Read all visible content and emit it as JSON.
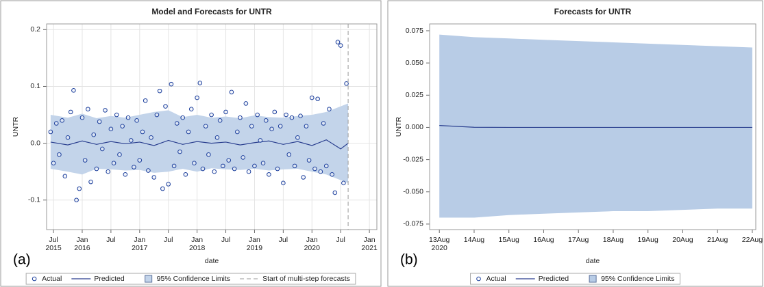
{
  "chart_data": [
    {
      "type": "forecast",
      "title": "Model and Forecasts for UNTR",
      "xlabel": "date",
      "ylabel": "UNTR",
      "panel_label": "(a)",
      "xlim": [
        2015.38,
        2021.13
      ],
      "xticks": [
        {
          "value": 2015.5,
          "label": "Jul 2015"
        },
        {
          "value": 2016.0,
          "label": "Jan 2016"
        },
        {
          "value": 2016.5,
          "label": "Jul"
        },
        {
          "value": 2017.0,
          "label": "Jan 2017"
        },
        {
          "value": 2017.5,
          "label": "Jul"
        },
        {
          "value": 2018.0,
          "label": "Jan 2018"
        },
        {
          "value": 2018.5,
          "label": "Jul"
        },
        {
          "value": 2019.0,
          "label": "Jan 2019"
        },
        {
          "value": 2019.5,
          "label": "Jul"
        },
        {
          "value": 2020.0,
          "label": "Jan 2020"
        },
        {
          "value": 2020.5,
          "label": "Jul"
        },
        {
          "value": 2021.0,
          "label": "Jan 2021"
        }
      ],
      "ylim": [
        -0.152,
        0.21
      ],
      "yticks": [
        0.2,
        0.1,
        {
          "value": 0,
          "label": "0.0"
        },
        -0.1
      ],
      "grid": true,
      "series": [
        {
          "name": "Actual",
          "style": "marker",
          "color": "#1c3f9c",
          "x": [
            2015.45,
            2015.5,
            2015.55,
            2015.6,
            2015.65,
            2015.7,
            2015.75,
            2015.8,
            2015.85,
            2015.9,
            2015.95,
            2016.0,
            2016.05,
            2016.1,
            2016.15,
            2016.2,
            2016.25,
            2016.3,
            2016.35,
            2016.4,
            2016.45,
            2016.5,
            2016.55,
            2016.6,
            2016.65,
            2016.7,
            2016.75,
            2016.8,
            2016.85,
            2016.9,
            2016.95,
            2017.0,
            2017.05,
            2017.1,
            2017.15,
            2017.2,
            2017.25,
            2017.3,
            2017.35,
            2017.4,
            2017.45,
            2017.5,
            2017.55,
            2017.6,
            2017.65,
            2017.7,
            2017.75,
            2017.8,
            2017.85,
            2017.9,
            2017.95,
            2018.0,
            2018.05,
            2018.1,
            2018.15,
            2018.2,
            2018.25,
            2018.3,
            2018.35,
            2018.4,
            2018.45,
            2018.5,
            2018.55,
            2018.6,
            2018.65,
            2018.7,
            2018.75,
            2018.8,
            2018.85,
            2018.9,
            2018.95,
            2019.0,
            2019.05,
            2019.1,
            2019.15,
            2019.2,
            2019.25,
            2019.3,
            2019.35,
            2019.4,
            2019.45,
            2019.5,
            2019.55,
            2019.6,
            2019.65,
            2019.7,
            2019.75,
            2019.8,
            2019.85,
            2019.9,
            2019.95,
            2020.0,
            2020.05,
            2020.1,
            2020.15,
            2020.2,
            2020.25,
            2020.3,
            2020.35,
            2020.4,
            2020.45,
            2020.5,
            2020.55,
            2020.6
          ],
          "values": [
            0.02,
            -0.035,
            0.035,
            -0.02,
            0.04,
            -0.058,
            0.01,
            0.055,
            0.093,
            -0.1,
            -0.08,
            0.045,
            -0.03,
            0.06,
            -0.068,
            0.015,
            -0.045,
            0.038,
            -0.01,
            0.058,
            -0.05,
            0.025,
            -0.035,
            0.05,
            -0.02,
            0.03,
            -0.055,
            0.045,
            0.005,
            -0.042,
            0.04,
            -0.03,
            0.02,
            0.075,
            -0.048,
            0.01,
            -0.06,
            0.05,
            0.092,
            -0.08,
            0.065,
            -0.072,
            0.104,
            -0.04,
            0.035,
            -0.015,
            0.045,
            -0.055,
            0.02,
            0.06,
            -0.035,
            0.08,
            0.106,
            -0.045,
            0.03,
            -0.02,
            0.05,
            -0.05,
            0.01,
            0.04,
            -0.04,
            0.055,
            -0.03,
            0.09,
            -0.045,
            0.02,
            0.045,
            -0.025,
            0.07,
            -0.05,
            0.03,
            -0.04,
            0.05,
            0.005,
            -0.035,
            0.04,
            -0.055,
            0.025,
            0.055,
            -0.045,
            0.03,
            -0.07,
            0.05,
            -0.02,
            0.045,
            -0.04,
            0.01,
            0.048,
            -0.06,
            0.03,
            -0.03,
            0.08,
            -0.045,
            0.078,
            -0.05,
            0.035,
            -0.04,
            0.06,
            -0.055,
            -0.087,
            0.178,
            0.172,
            -0.07,
            0.105
          ]
        },
        {
          "name": "Predicted",
          "style": "line",
          "color": "#2a3f8f",
          "x": [
            2015.45,
            2015.75,
            2016.0,
            2016.25,
            2016.5,
            2016.75,
            2017.0,
            2017.25,
            2017.5,
            2017.75,
            2018.0,
            2018.25,
            2018.5,
            2018.75,
            2019.0,
            2019.25,
            2019.5,
            2019.75,
            2020.0,
            2020.25,
            2020.5,
            2020.63
          ],
          "values": [
            0.002,
            -0.003,
            0.004,
            -0.002,
            0.003,
            -0.001,
            0.002,
            -0.004,
            0.005,
            -0.002,
            0.003,
            0,
            0.002,
            -0.003,
            0.001,
            0.004,
            -0.002,
            0.003,
            -0.004,
            0.006,
            -0.01,
            0
          ]
        },
        {
          "name": "95% Confidence Limits",
          "style": "band",
          "color": "#c3d4ea",
          "x": [
            2015.45,
            2015.75,
            2016.0,
            2016.25,
            2016.5,
            2016.75,
            2017.0,
            2017.25,
            2017.5,
            2017.75,
            2018.0,
            2018.25,
            2018.5,
            2018.75,
            2019.0,
            2019.25,
            2019.5,
            2019.75,
            2020.0,
            2020.25,
            2020.5,
            2020.63
          ],
          "lower": [
            -0.045,
            -0.05,
            -0.055,
            -0.045,
            -0.046,
            -0.048,
            -0.047,
            -0.052,
            -0.05,
            -0.045,
            -0.05,
            -0.044,
            -0.046,
            -0.047,
            -0.045,
            -0.048,
            -0.046,
            -0.045,
            -0.05,
            -0.055,
            -0.065,
            -0.07
          ],
          "upper": [
            0.05,
            0.045,
            0.052,
            0.044,
            0.048,
            0.045,
            0.05,
            0.055,
            0.058,
            0.046,
            0.05,
            0.045,
            0.047,
            0.044,
            0.049,
            0.046,
            0.045,
            0.048,
            0.05,
            0.055,
            0.065,
            0.07
          ]
        }
      ],
      "forecast_start": {
        "label": "Start of multi-step forecasts",
        "value": 2020.63,
        "color": "#999999"
      }
    },
    {
      "type": "forecast",
      "title": "Forecasts for UNTR",
      "xlabel": "date",
      "ylabel": "UNTR",
      "panel_label": "(b)",
      "xlim": [
        12.72,
        22.1
      ],
      "xticks": [
        {
          "value": 13,
          "label": "13Aug 2020"
        },
        {
          "value": 14,
          "label": "14Aug"
        },
        {
          "value": 15,
          "label": "15Aug"
        },
        {
          "value": 16,
          "label": "16Aug"
        },
        {
          "value": 17,
          "label": "17Aug"
        },
        {
          "value": 18,
          "label": "18Aug"
        },
        {
          "value": 19,
          "label": "19Aug"
        },
        {
          "value": 20,
          "label": "20Aug"
        },
        {
          "value": 21,
          "label": "21Aug"
        },
        {
          "value": 22,
          "label": "22Aug"
        }
      ],
      "ylim": [
        -0.0793,
        0.0803
      ],
      "yticks": [
        {
          "value": 0.075,
          "label": "0.075"
        },
        {
          "value": 0.05,
          "label": "0.050"
        },
        {
          "value": 0.025,
          "label": "0.025"
        },
        {
          "value": 0,
          "label": "0.000"
        },
        {
          "value": -0.025,
          "label": "-0.025"
        },
        {
          "value": -0.05,
          "label": "-0.050"
        },
        {
          "value": -0.075,
          "label": "-0.075"
        }
      ],
      "grid": false,
      "legend_extra": [
        "Actual"
      ],
      "series": [
        {
          "name": "Predicted",
          "style": "line",
          "color": "#2a3f8f",
          "x": [
            13,
            14,
            15,
            16,
            17,
            18,
            19,
            20,
            21,
            22
          ],
          "values": [
            0.0015,
            0.0001,
            0,
            0,
            0,
            0,
            0,
            0,
            0,
            0
          ]
        },
        {
          "name": "95% Confidence Limits",
          "style": "band",
          "color": "#b8cce6",
          "x": [
            13,
            14,
            15,
            16,
            17,
            18,
            19,
            20,
            21,
            22
          ],
          "lower": [
            -0.07,
            -0.07,
            -0.068,
            -0.067,
            -0.066,
            -0.065,
            -0.065,
            -0.064,
            -0.063,
            -0.063
          ],
          "upper": [
            0.072,
            0.07,
            0.069,
            0.068,
            0.067,
            0.066,
            0.065,
            0.064,
            0.063,
            0.062
          ]
        }
      ]
    }
  ]
}
